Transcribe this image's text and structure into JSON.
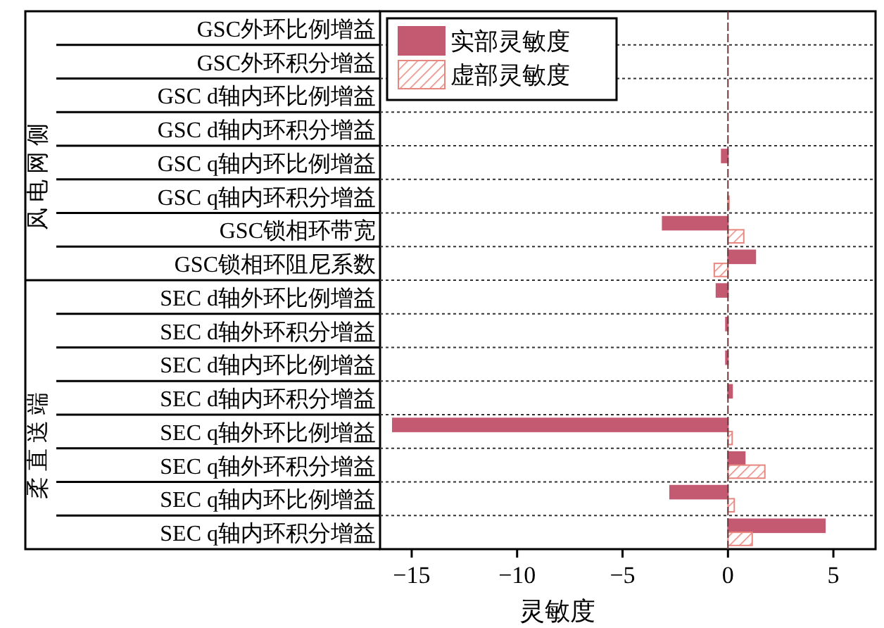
{
  "chart_data": {
    "type": "bar",
    "orientation": "horizontal",
    "xlabel": "灵敏度",
    "categories": [
      "GSC外环比例增益",
      "GSC外环积分增益",
      "GSC d轴内环比例增益",
      "GSC d轴内环积分增益",
      "GSC q轴内环比例增益",
      "GSC q轴内环积分增益",
      "GSC锁相环带宽",
      "GSC锁相环阻尼系数",
      "SEC d轴外环比例增益",
      "SEC d轴外环积分增益",
      "SEC d轴内环比例增益",
      "SEC d轴内环积分增益",
      "SEC q轴外环比例增益",
      "SEC q轴外环积分增益",
      "SEC q轴内环比例增益",
      "SEC q轴内环积分增益"
    ],
    "series": [
      {
        "name": "实部灵敏度",
        "color": "#c45a72",
        "values": [
          0,
          0,
          0,
          0,
          -0.3,
          0,
          -3.1,
          1.3,
          -0.55,
          -0.1,
          -0.1,
          0.2,
          -15.9,
          0.8,
          -2.75,
          4.6
        ]
      },
      {
        "name": "虚部灵敏度",
        "color": "#e8877f",
        "values": [
          0,
          0,
          0,
          0,
          0,
          0.05,
          0.75,
          -0.65,
          0,
          0,
          0,
          0,
          0.2,
          1.75,
          0.3,
          1.15
        ]
      }
    ],
    "xlim": [
      -16.5,
      7
    ],
    "xticks": [
      {
        "value": -15,
        "label": "−15"
      },
      {
        "value": -10,
        "label": "−10"
      },
      {
        "value": -5,
        "label": "−5"
      },
      0,
      5
    ],
    "grid": "y",
    "legend": "top left",
    "ref_lines": [
      {
        "axis": "x",
        "value": 0,
        "color": "#6b3a3a",
        "line_style": "dashed"
      }
    ],
    "annotations": [
      "风电网侧",
      "柔直送端"
    ]
  }
}
